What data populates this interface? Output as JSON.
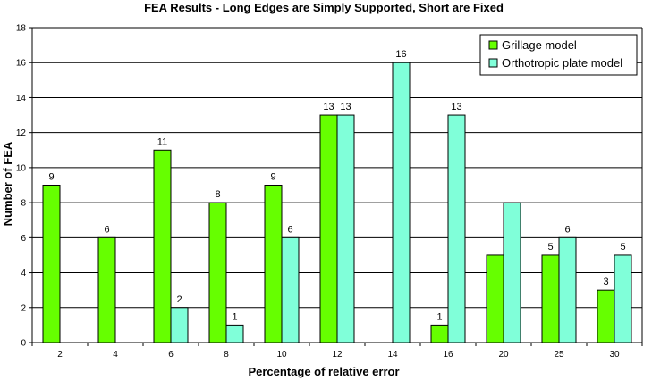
{
  "chart_data": {
    "type": "bar",
    "title": "FEA Results - Long Edges are Simply Supported, Short are Fixed",
    "xlabel": "Percentage of relative error",
    "ylabel": "Number of FEA",
    "categories": [
      "2",
      "4",
      "6",
      "8",
      "10",
      "12",
      "14",
      "16",
      "20",
      "25",
      "30"
    ],
    "ylim": [
      0,
      18
    ],
    "yticks": [
      0,
      2,
      4,
      6,
      8,
      10,
      12,
      14,
      16,
      18
    ],
    "grid": true,
    "legend_position": "top-right",
    "series": [
      {
        "name": "Grillage model",
        "color": "#66ff00",
        "values": [
          9,
          6,
          11,
          8,
          9,
          13,
          null,
          1,
          5,
          5,
          3
        ],
        "labels": [
          "9",
          "6",
          "11",
          "8",
          "9",
          "13",
          "",
          "1",
          "",
          "5",
          "3"
        ]
      },
      {
        "name": "Orthotropic plate model",
        "color": "#80ffd9",
        "values": [
          null,
          null,
          2,
          1,
          6,
          13,
          16,
          13,
          8,
          6,
          5
        ],
        "labels": [
          "",
          "",
          "2",
          "1",
          "6",
          "13",
          "16",
          "13",
          "",
          "6",
          "5"
        ]
      }
    ]
  }
}
